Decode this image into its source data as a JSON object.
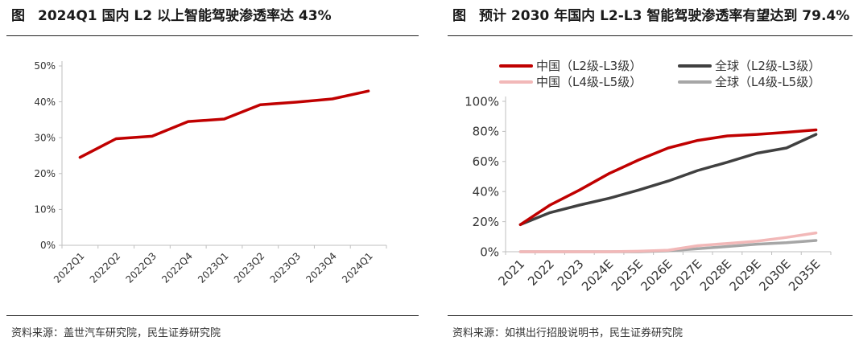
{
  "left": {
    "figure_prefix": "图",
    "title": "2024Q1 国内 L2 以上智能驾驶渗透率达 43%",
    "source": "资料来源：盖世汽车研究院，民生证券研究院"
  },
  "right": {
    "figure_prefix": "图",
    "title": "预计 2030 年国内 L2-L3 智能驾驶渗透率有望达到 79.4%",
    "source": "资料来源：如祺出行招股说明书，民生证券研究院"
  },
  "colors": {
    "china_l2l3": "#c00000",
    "global_l2l3": "#404040",
    "china_l4l5": "#f2b8b8",
    "global_l4l5": "#a6a6a6",
    "axis": "#bfbfbf"
  },
  "chart_data": [
    {
      "type": "line",
      "categories": [
        "2022Q1",
        "2022Q2",
        "2022Q3",
        "2022Q4",
        "2023Q1",
        "2023Q2",
        "2023Q3",
        "2023Q4",
        "2024Q1"
      ],
      "series": [
        {
          "values": [
            24.5,
            29.7,
            30.4,
            34.5,
            35.2,
            39.2,
            39.9,
            40.8,
            43.0
          ],
          "color": "#c00000"
        }
      ],
      "ylim": [
        0,
        50
      ],
      "yticks": [
        0,
        10,
        20,
        30,
        40,
        50
      ],
      "ytick_labels": [
        "0%",
        "10%",
        "20%",
        "30%",
        "40%",
        "50%"
      ],
      "grid": false,
      "legend": "none"
    },
    {
      "type": "line",
      "categories": [
        "2021",
        "2022",
        "2023",
        "2024E",
        "2025E",
        "2026E",
        "2027E",
        "2028E",
        "2029E",
        "2030E",
        "2035E"
      ],
      "series": [
        {
          "name": "中国（L2级-L3级）",
          "values": [
            18,
            31,
            41,
            52,
            61,
            69,
            74,
            77,
            78,
            79.4,
            81
          ],
          "color": "#c00000"
        },
        {
          "name": "全球（L2级-L3级）",
          "values": [
            18,
            26,
            31,
            35.5,
            41,
            47,
            54,
            59.5,
            65.5,
            69,
            78
          ],
          "color": "#404040"
        },
        {
          "name": "中国（L4级-L5级）",
          "values": [
            0,
            0,
            0,
            0,
            0.3,
            1,
            4,
            5.5,
            7,
            9.5,
            12.5
          ],
          "color": "#f2b8b8"
        },
        {
          "name": "全球（L4级-L5级）",
          "values": [
            0,
            0,
            0,
            0,
            0,
            0.6,
            2,
            3.5,
            5,
            6,
            7.5
          ],
          "color": "#a6a6a6"
        }
      ],
      "ylim": [
        0,
        100
      ],
      "yticks": [
        0,
        20,
        40,
        60,
        80,
        100
      ],
      "ytick_labels": [
        "0%",
        "20%",
        "40%",
        "60%",
        "80%",
        "100%"
      ],
      "grid": false,
      "legend": "top"
    }
  ]
}
